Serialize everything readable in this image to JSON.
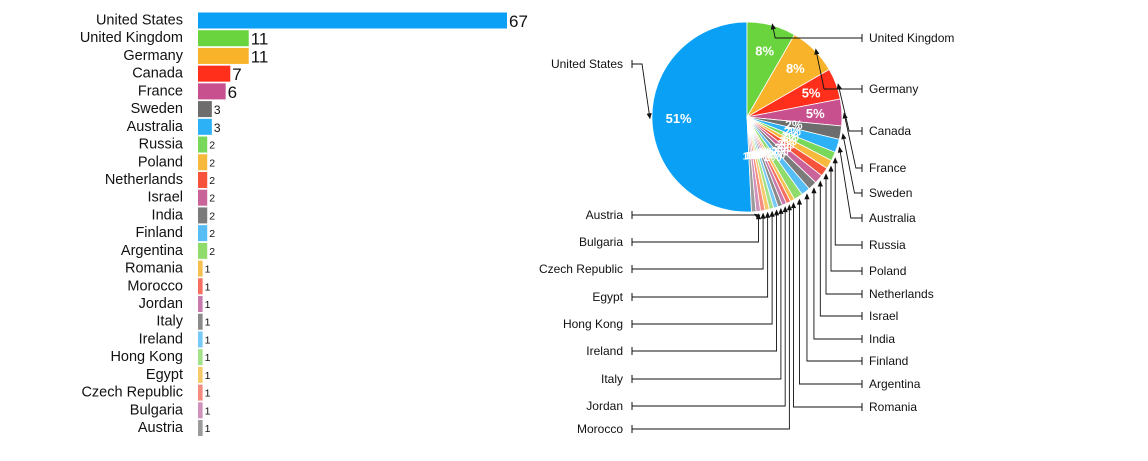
{
  "chart_data": [
    {
      "type": "bar",
      "orientation": "horizontal",
      "categories": [
        "United States",
        "United Kingdom",
        "Germany",
        "Canada",
        "France",
        "Sweden",
        "Australia",
        "Russia",
        "Poland",
        "Netherlands",
        "Israel",
        "India",
        "Finland",
        "Argentina",
        "Romania",
        "Morocco",
        "Jordan",
        "Italy",
        "Ireland",
        "Hong Kong",
        "Egypt",
        "Czech Republic",
        "Bulgaria",
        "Austria"
      ],
      "values": [
        67,
        11,
        11,
        7,
        6,
        3,
        3,
        2,
        2,
        2,
        2,
        2,
        2,
        2,
        1,
        1,
        1,
        1,
        1,
        1,
        1,
        1,
        1,
        1
      ],
      "value_labels": true,
      "grid": false,
      "title": "",
      "xlabel": "",
      "ylabel": ""
    },
    {
      "type": "pie",
      "labels": [
        "United States",
        "United Kingdom",
        "Germany",
        "Canada",
        "France",
        "Sweden",
        "Australia",
        "Russia",
        "Poland",
        "Netherlands",
        "Israel",
        "India",
        "Finland",
        "Argentina",
        "Romania",
        "Morocco",
        "Jordan",
        "Italy",
        "Ireland",
        "Hong Kong",
        "Egypt",
        "Czech Republic",
        "Bulgaria",
        "Austria"
      ],
      "values": [
        67,
        11,
        11,
        7,
        6,
        3,
        3,
        2,
        2,
        2,
        2,
        2,
        2,
        2,
        1,
        1,
        1,
        1,
        1,
        1,
        1,
        1,
        1,
        1
      ],
      "percent_labels": [
        "51%",
        "8%",
        "8%",
        "5%",
        "5%",
        "2%",
        "2%",
        "2%",
        "2%",
        "2%",
        "2%",
        "2%",
        "2%",
        "2%",
        "1%",
        "1%",
        "1%",
        "1%",
        "1%",
        "1%",
        "1%",
        "1%",
        "1%",
        "1%"
      ],
      "title": ""
    }
  ],
  "colors": [
    "#0aa0f5",
    "#6ad43e",
    "#f8b32a",
    "#ff2f1c",
    "#c9508e",
    "#6d6d6d",
    "#2cb1f7",
    "#77d85a",
    "#f7b93c",
    "#f7533c",
    "#c9649a",
    "#7b7b7b",
    "#56bdf5",
    "#8fdc6c",
    "#f6c050",
    "#f66f60",
    "#c97aac",
    "#8a8a8a",
    "#78caf6",
    "#a4e289",
    "#f6c96b",
    "#f68c80",
    "#cf92ba",
    "#9b9b9b"
  ]
}
